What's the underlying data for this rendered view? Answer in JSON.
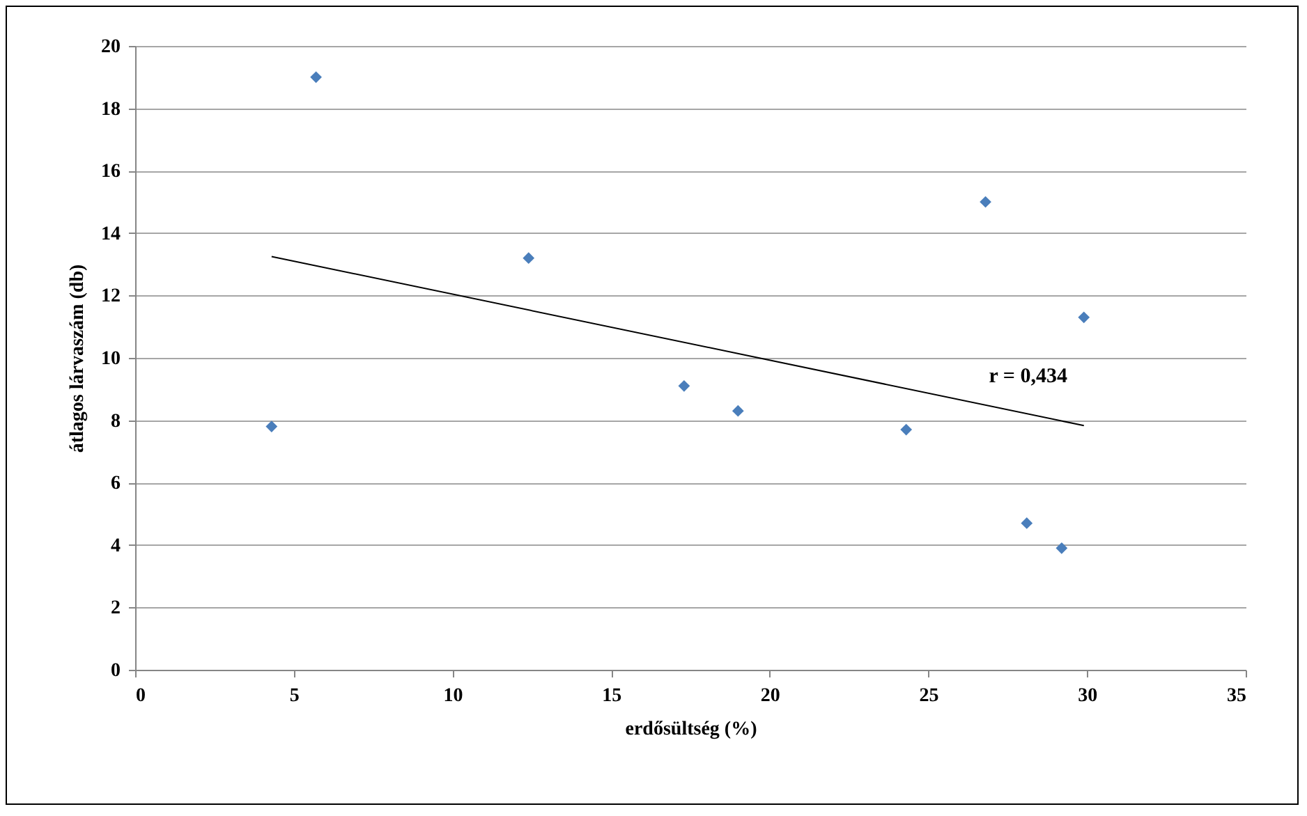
{
  "chart_data": {
    "type": "scatter",
    "xlabel": "erdősültség (%)",
    "ylabel": "átlagos lárvaszám (db)",
    "xlim": [
      0,
      35
    ],
    "xticks": [
      0,
      5,
      10,
      15,
      20,
      25,
      30,
      35
    ],
    "ylim": [
      0,
      20
    ],
    "yticks": [
      0,
      2,
      4,
      6,
      8,
      10,
      12,
      14,
      16,
      18,
      20
    ],
    "grid": "y",
    "series": [
      {
        "marker": "diamond",
        "color": "#4a7ebb",
        "x": [
          4.3,
          5.7,
          12.4,
          17.3,
          19.0,
          24.3,
          26.8,
          28.1,
          29.2,
          29.9
        ],
        "values": [
          7.8,
          19.0,
          13.2,
          9.1,
          8.3,
          7.7,
          15.0,
          4.7,
          3.9,
          11.3
        ]
      },
      {
        "type": "line",
        "color": "#000000",
        "x": [
          4.3,
          29.9
        ],
        "values": [
          13.25,
          7.83
        ]
      }
    ],
    "annotations": [
      "r = 0,434"
    ]
  }
}
